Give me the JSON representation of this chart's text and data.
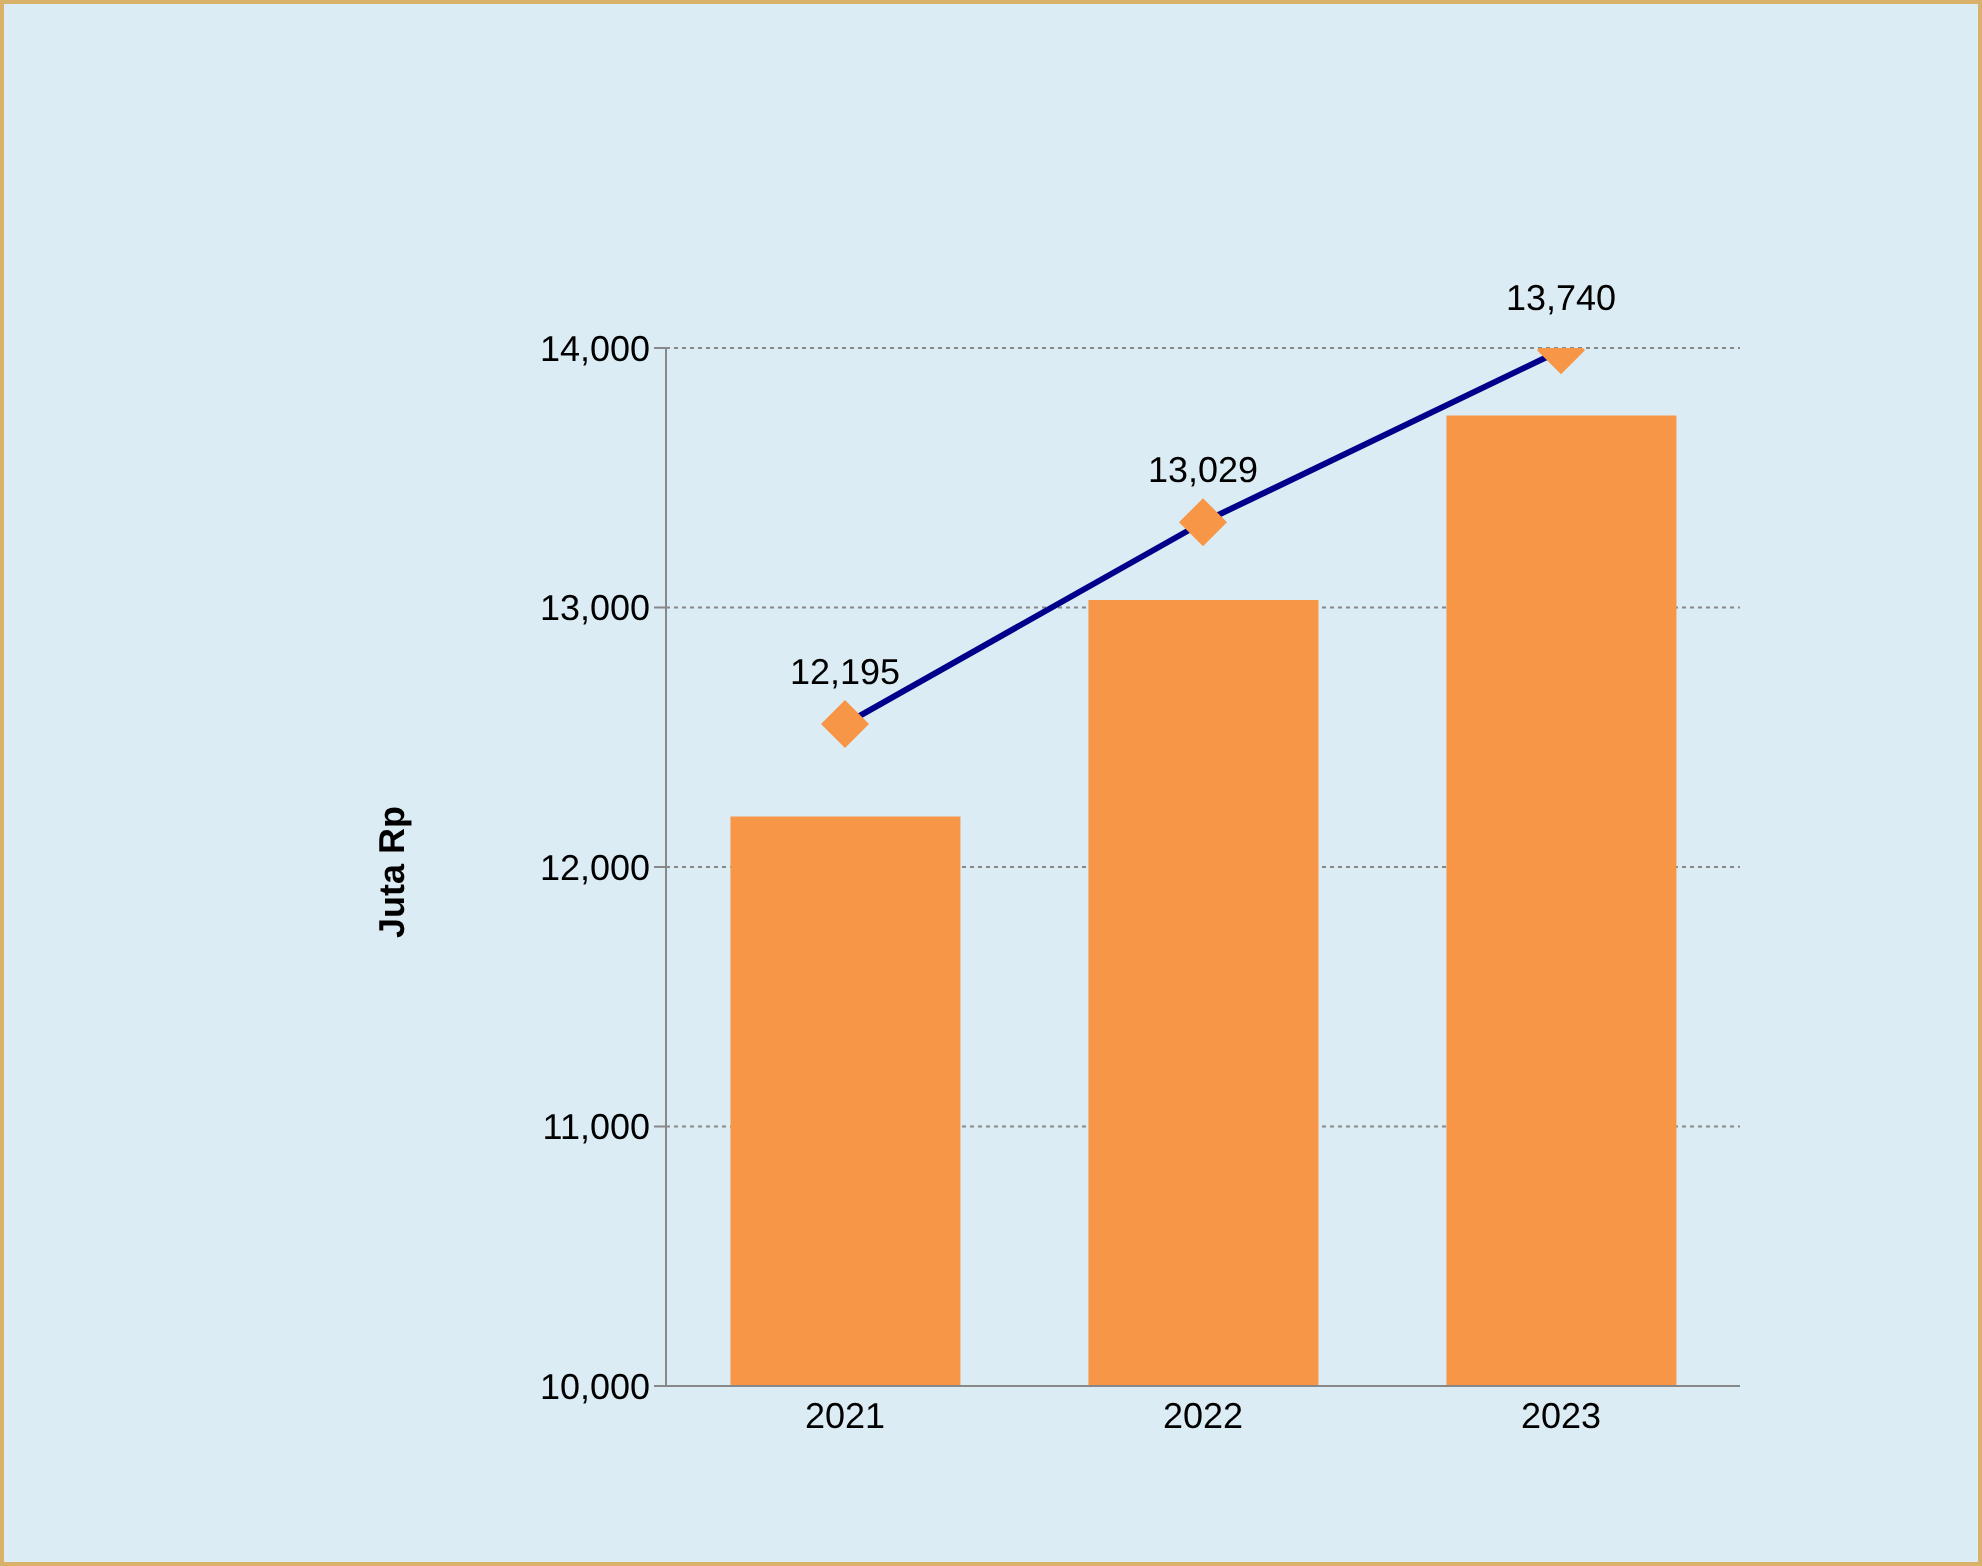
{
  "chart_data": {
    "type": "bar",
    "ylabel": "Juta Rp",
    "categories": [
      "2021",
      "2022",
      "2023"
    ],
    "series": [
      {
        "color": "#f79646",
        "values": [
          12195,
          13029,
          13740
        ]
      },
      {
        "type": "line",
        "axis": "y2",
        "color": "#00008b",
        "values": [
          12195,
          13029,
          13740
        ],
        "value_labels": [
          "12,195",
          "13,029",
          "13,740"
        ]
      }
    ],
    "ylim": [
      10000,
      14000
    ],
    "yticks": [
      {
        "value": 10000,
        "label": "10,000"
      },
      {
        "value": 11000,
        "label": "11,000"
      },
      {
        "value": 12000,
        "label": "12,000"
      },
      {
        "value": 13000,
        "label": "13,000"
      },
      {
        "value": 14000,
        "label": "14,000"
      }
    ],
    "y2lim": [
      9460,
      13749
    ],
    "tick_labels": "xy",
    "grid": "y",
    "legend": false,
    "marker": "diamond",
    "line_style": "solid"
  }
}
